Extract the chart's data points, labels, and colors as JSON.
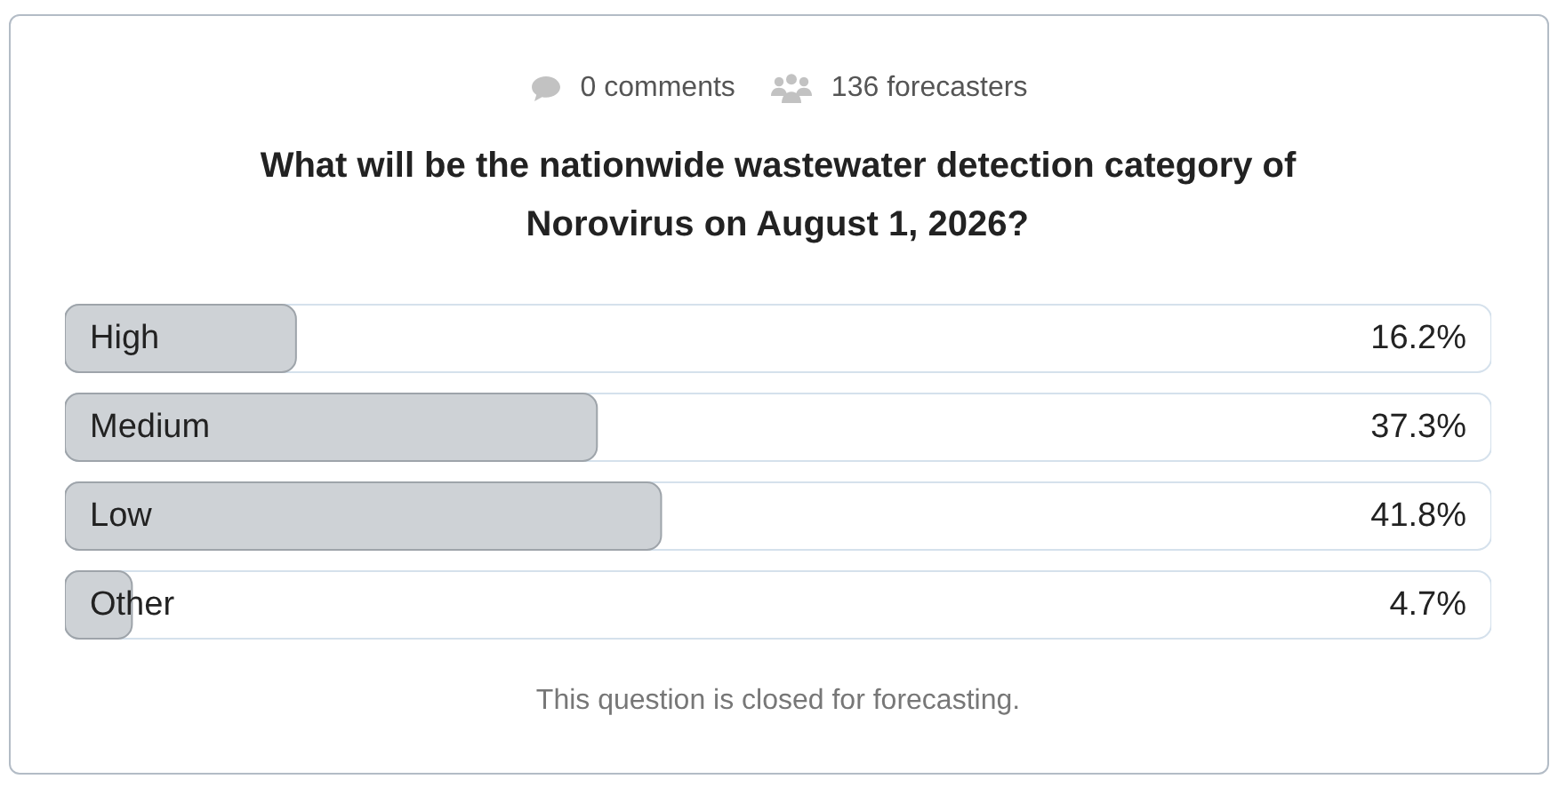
{
  "chart_data": {
    "type": "bar",
    "orientation": "horizontal",
    "title": "What will be the nationwide wastewater detection category of Norovirus on August 1, 2026?",
    "categories": [
      "High",
      "Medium",
      "Low",
      "Other"
    ],
    "values": [
      16.2,
      37.3,
      41.8,
      4.7
    ],
    "color": "#ced2d6",
    "value_labels": [
      "16.2%",
      "37.3%",
      "41.8%",
      "4.7%"
    ],
    "xlim": [
      0,
      100
    ],
    "tick_labels": false,
    "annotations": [
      "0 comments",
      "136 forecasters",
      "This question is closed for forecasting."
    ]
  }
}
